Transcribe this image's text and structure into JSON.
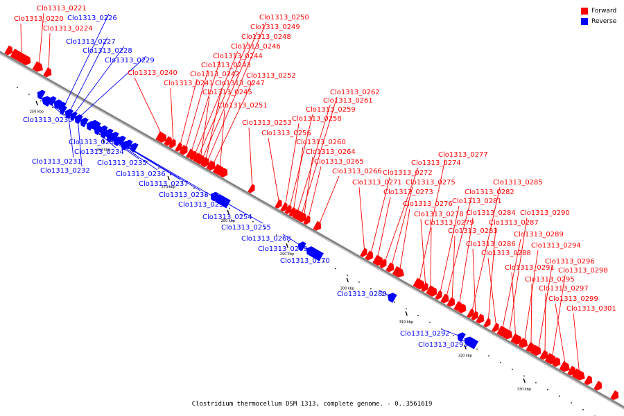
{
  "title": "Clostridium thermocellum DSM 1313, complete genome. - 0..3561619",
  "legend": [
    {
      "label": "Forward",
      "color": "#ff0000"
    },
    {
      "label": "Reverse",
      "color": "#0000ff"
    }
  ],
  "colors": {
    "forward": "#ff0000",
    "reverse": "#0000ff",
    "axis": "#808080",
    "tick": "#000000"
  },
  "ticks": [
    "250 kbp",
    "260 kbp",
    "270 kbp",
    "280 kbp",
    "290 kbp",
    "300 kbp",
    "310 kbp",
    "320 kbp",
    "330 kbp"
  ],
  "genes": [
    {
      "name": "Clo1313_0220",
      "strand": "forward"
    },
    {
      "name": "Clo1313_0221",
      "strand": "forward"
    },
    {
      "name": "Clo1313_0224",
      "strand": "forward"
    },
    {
      "name": "Clo1313_0226",
      "strand": "reverse"
    },
    {
      "name": "Clo1313_0227",
      "strand": "reverse"
    },
    {
      "name": "Clo1313_0228",
      "strand": "reverse"
    },
    {
      "name": "Clo1313_0229",
      "strand": "reverse"
    },
    {
      "name": "Clo1313_0230",
      "strand": "reverse"
    },
    {
      "name": "Clo1313_0231",
      "strand": "reverse"
    },
    {
      "name": "Clo1313_0232",
      "strand": "reverse"
    },
    {
      "name": "Clo1313_0233",
      "strand": "reverse"
    },
    {
      "name": "Clo1313_0234",
      "strand": "reverse"
    },
    {
      "name": "Clo1313_0235",
      "strand": "reverse"
    },
    {
      "name": "Clo1313_0236",
      "strand": "reverse"
    },
    {
      "name": "Clo1313_0237",
      "strand": "reverse"
    },
    {
      "name": "Clo1313_0238",
      "strand": "reverse"
    },
    {
      "name": "Clo1313_0239",
      "strand": "reverse"
    },
    {
      "name": "Clo1313_0240",
      "strand": "forward"
    },
    {
      "name": "Clo1313_0241",
      "strand": "forward"
    },
    {
      "name": "Clo1313_0242",
      "strand": "forward"
    },
    {
      "name": "Clo1313_0243",
      "strand": "forward"
    },
    {
      "name": "Clo1313_0244",
      "strand": "forward"
    },
    {
      "name": "Clo1313_0245",
      "strand": "forward"
    },
    {
      "name": "Clo1313_0246",
      "strand": "forward"
    },
    {
      "name": "Clo1313_0247",
      "strand": "forward"
    },
    {
      "name": "Clo1313_0248",
      "strand": "forward"
    },
    {
      "name": "Clo1313_0249",
      "strand": "forward"
    },
    {
      "name": "Clo1313_0250",
      "strand": "forward"
    },
    {
      "name": "Clo1313_0251",
      "strand": "forward"
    },
    {
      "name": "Clo1313_0252",
      "strand": "forward"
    },
    {
      "name": "Clo1313_0253",
      "strand": "forward"
    },
    {
      "name": "Clo1313_0254",
      "strand": "reverse"
    },
    {
      "name": "Clo1313_0255",
      "strand": "reverse"
    },
    {
      "name": "Clo1313_0256",
      "strand": "forward"
    },
    {
      "name": "Clo1313_0258",
      "strand": "forward"
    },
    {
      "name": "Clo1313_0259",
      "strand": "forward"
    },
    {
      "name": "Clo1313_0260",
      "strand": "forward"
    },
    {
      "name": "Clo1313_0261",
      "strand": "forward"
    },
    {
      "name": "Clo1313_0262",
      "strand": "forward"
    },
    {
      "name": "Clo1313_0264",
      "strand": "forward"
    },
    {
      "name": "Clo1313_0265",
      "strand": "forward"
    },
    {
      "name": "Clo1313_0266",
      "strand": "forward"
    },
    {
      "name": "Clo1313_0268",
      "strand": "reverse"
    },
    {
      "name": "Clo1313_0269",
      "strand": "reverse"
    },
    {
      "name": "Clo1313_0270",
      "strand": "reverse"
    },
    {
      "name": "Clo1313_0271",
      "strand": "forward"
    },
    {
      "name": "Clo1313_0272",
      "strand": "forward"
    },
    {
      "name": "Clo1313_0273",
      "strand": "forward"
    },
    {
      "name": "Clo1313_0274",
      "strand": "forward"
    },
    {
      "name": "Clo1313_0275",
      "strand": "forward"
    },
    {
      "name": "Clo1313_0276",
      "strand": "forward"
    },
    {
      "name": "Clo1313_0277",
      "strand": "forward"
    },
    {
      "name": "Clo1313_0278",
      "strand": "forward"
    },
    {
      "name": "Clo1313_0279",
      "strand": "forward"
    },
    {
      "name": "Clo1313_0280",
      "strand": "reverse"
    },
    {
      "name": "Clo1313_0281",
      "strand": "forward"
    },
    {
      "name": "Clo1313_0282",
      "strand": "forward"
    },
    {
      "name": "Clo1313_0283",
      "strand": "forward"
    },
    {
      "name": "Clo1313_0284",
      "strand": "forward"
    },
    {
      "name": "Clo1313_0285",
      "strand": "forward"
    },
    {
      "name": "Clo1313_0286",
      "strand": "forward"
    },
    {
      "name": "Clo1313_0287",
      "strand": "forward"
    },
    {
      "name": "Clo1313_0288",
      "strand": "forward"
    },
    {
      "name": "Clo1313_0289",
      "strand": "forward"
    },
    {
      "name": "Clo1313_0290",
      "strand": "forward"
    },
    {
      "name": "Clo1313_0291",
      "strand": "forward"
    },
    {
      "name": "Clo1313_0292",
      "strand": "reverse"
    },
    {
      "name": "Clo1313_0293",
      "strand": "reverse"
    },
    {
      "name": "Clo1313_0294",
      "strand": "forward"
    },
    {
      "name": "Clo1313_0295",
      "strand": "forward"
    },
    {
      "name": "Clo1313_0296",
      "strand": "forward"
    },
    {
      "name": "Clo1313_0297",
      "strand": "forward"
    },
    {
      "name": "Clo1313_0298",
      "strand": "forward"
    },
    {
      "name": "Clo1313_0299",
      "strand": "forward"
    },
    {
      "name": "Clo1313_0301",
      "strand": "forward"
    }
  ]
}
